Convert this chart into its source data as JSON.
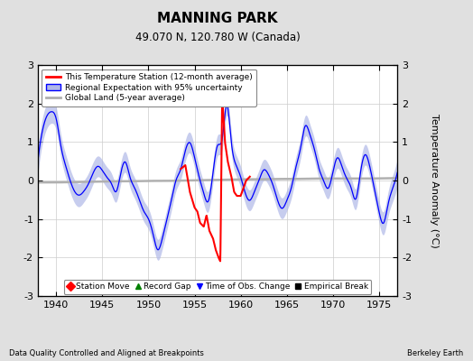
{
  "title": "MANNING PARK",
  "subtitle": "49.070 N, 120.780 W (Canada)",
  "ylabel": "Temperature Anomaly (°C)",
  "ylim": [
    -3,
    3
  ],
  "xlim": [
    1938,
    1977
  ],
  "xticks": [
    1940,
    1945,
    1950,
    1955,
    1960,
    1965,
    1970,
    1975
  ],
  "yticks": [
    -3,
    -2,
    -1,
    0,
    1,
    2,
    3
  ],
  "bg_color": "#e0e0e0",
  "plot_bg_color": "#ffffff",
  "legend_items": [
    "This Temperature Station (12-month average)",
    "Regional Expectation with 95% uncertainty",
    "Global Land (5-year average)"
  ],
  "footer_left": "Data Quality Controlled and Aligned at Breakpoints",
  "footer_right": "Berkeley Earth",
  "regional_x": [
    1938.0,
    1938.5,
    1939.0,
    1939.5,
    1940.0,
    1940.5,
    1941.0,
    1941.5,
    1942.0,
    1942.5,
    1943.0,
    1943.5,
    1944.0,
    1944.5,
    1945.0,
    1945.5,
    1946.0,
    1946.5,
    1947.0,
    1947.5,
    1948.0,
    1948.5,
    1949.0,
    1949.5,
    1950.0,
    1950.5,
    1951.0,
    1951.5,
    1952.0,
    1952.5,
    1953.0,
    1953.5,
    1954.0,
    1954.5,
    1955.0,
    1955.5,
    1956.0,
    1956.5,
    1957.0,
    1957.5,
    1958.0,
    1958.5,
    1959.0,
    1959.5,
    1960.0,
    1960.5,
    1961.0,
    1961.5,
    1962.0,
    1962.5,
    1963.0,
    1963.5,
    1964.0,
    1964.5,
    1965.0,
    1965.5,
    1966.0,
    1966.5,
    1967.0,
    1967.5,
    1968.0,
    1968.5,
    1969.0,
    1969.5,
    1970.0,
    1970.5,
    1971.0,
    1971.5,
    1972.0,
    1972.5,
    1973.0,
    1973.5,
    1974.0,
    1974.5,
    1975.0,
    1975.5,
    1976.0,
    1976.5,
    1977.0
  ],
  "regional_y": [
    0.5,
    1.3,
    1.7,
    1.8,
    1.6,
    0.9,
    0.4,
    0.0,
    -0.3,
    -0.4,
    -0.3,
    -0.1,
    0.2,
    0.4,
    0.3,
    0.1,
    -0.1,
    -0.3,
    0.2,
    0.5,
    0.1,
    -0.2,
    -0.5,
    -0.8,
    -1.0,
    -1.4,
    -1.8,
    -1.5,
    -1.0,
    -0.5,
    0.0,
    0.3,
    0.8,
    1.0,
    0.6,
    0.1,
    -0.3,
    -0.5,
    0.2,
    0.9,
    1.1,
    2.0,
    1.0,
    0.4,
    0.1,
    -0.3,
    -0.5,
    -0.3,
    0.0,
    0.3,
    0.2,
    -0.1,
    -0.5,
    -0.7,
    -0.5,
    -0.2,
    0.3,
    0.8,
    1.4,
    1.2,
    0.8,
    0.3,
    0.0,
    -0.2,
    0.2,
    0.6,
    0.4,
    0.1,
    -0.2,
    -0.5,
    0.2,
    0.7,
    0.4,
    -0.2,
    -0.8,
    -1.1,
    -0.6,
    -0.2,
    0.2
  ],
  "uncertainty": [
    0.35,
    0.33,
    0.32,
    0.3,
    0.3,
    0.3,
    0.3,
    0.3,
    0.3,
    0.3,
    0.28,
    0.28,
    0.28,
    0.27,
    0.27,
    0.27,
    0.27,
    0.27,
    0.27,
    0.27,
    0.27,
    0.27,
    0.27,
    0.27,
    0.27,
    0.27,
    0.27,
    0.27,
    0.27,
    0.27,
    0.27,
    0.27,
    0.27,
    0.27,
    0.27,
    0.27,
    0.27,
    0.27,
    0.27,
    0.27,
    0.27,
    0.27,
    0.27,
    0.27,
    0.27,
    0.27,
    0.27,
    0.27,
    0.27,
    0.27,
    0.27,
    0.27,
    0.27,
    0.27,
    0.27,
    0.27,
    0.27,
    0.27,
    0.27,
    0.27,
    0.27,
    0.27,
    0.27,
    0.27,
    0.27,
    0.27,
    0.27,
    0.27,
    0.27,
    0.27,
    0.27,
    0.27,
    0.27,
    0.27,
    0.28,
    0.3,
    0.32,
    0.34,
    0.36
  ],
  "station_x": [
    1953.5,
    1954.0,
    1954.5,
    1955.0,
    1955.3,
    1955.6,
    1956.0,
    1956.3,
    1956.6,
    1957.0,
    1957.3,
    1957.6,
    1957.8,
    1958.0,
    1958.3,
    1958.6,
    1959.0,
    1959.3,
    1959.6,
    1960.0,
    1960.3,
    1960.6,
    1961.0
  ],
  "station_y": [
    0.3,
    0.4,
    -0.3,
    -0.7,
    -0.8,
    -1.1,
    -1.2,
    -0.9,
    -1.3,
    -1.5,
    -1.8,
    -2.0,
    -2.1,
    2.2,
    1.0,
    0.5,
    0.1,
    -0.3,
    -0.4,
    -0.4,
    -0.2,
    0.0,
    0.1
  ],
  "global_x": [
    1938,
    1940,
    1942,
    1944,
    1946,
    1948,
    1950,
    1952,
    1954,
    1956,
    1958,
    1960,
    1962,
    1964,
    1966,
    1968,
    1970,
    1972,
    1974,
    1976,
    1977
  ],
  "global_y": [
    -0.05,
    -0.05,
    -0.04,
    -0.03,
    -0.02,
    -0.02,
    -0.01,
    -0.01,
    0.0,
    0.01,
    0.02,
    0.03,
    0.03,
    0.04,
    0.04,
    0.05,
    0.05,
    0.05,
    0.05,
    0.06,
    0.06
  ]
}
